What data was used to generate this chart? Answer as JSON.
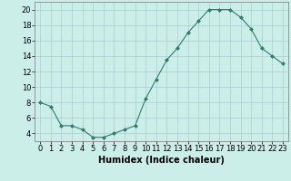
{
  "x": [
    0,
    1,
    2,
    3,
    4,
    5,
    6,
    7,
    8,
    9,
    10,
    11,
    12,
    13,
    14,
    15,
    16,
    17,
    18,
    19,
    20,
    21,
    22,
    23
  ],
  "y": [
    8,
    7.5,
    5,
    5,
    4.5,
    3.5,
    3.5,
    4,
    4.5,
    5,
    8.5,
    11,
    13.5,
    15,
    17,
    18.5,
    20,
    20,
    20,
    19,
    17.5,
    15,
    14,
    13
  ],
  "line_color": "#2e7d6e",
  "marker": "D",
  "marker_size": 2,
  "bg_color": "#cceee8",
  "grid_color": "#aacccc",
  "xlabel": "Humidex (Indice chaleur)",
  "xlabel_fontsize": 7,
  "tick_fontsize": 6,
  "ylim": [
    3,
    21
  ],
  "xlim": [
    -0.5,
    23.5
  ],
  "yticks": [
    4,
    6,
    8,
    10,
    12,
    14,
    16,
    18,
    20
  ],
  "xticks": [
    0,
    1,
    2,
    3,
    4,
    5,
    6,
    7,
    8,
    9,
    10,
    11,
    12,
    13,
    14,
    15,
    16,
    17,
    18,
    19,
    20,
    21,
    22,
    23
  ]
}
